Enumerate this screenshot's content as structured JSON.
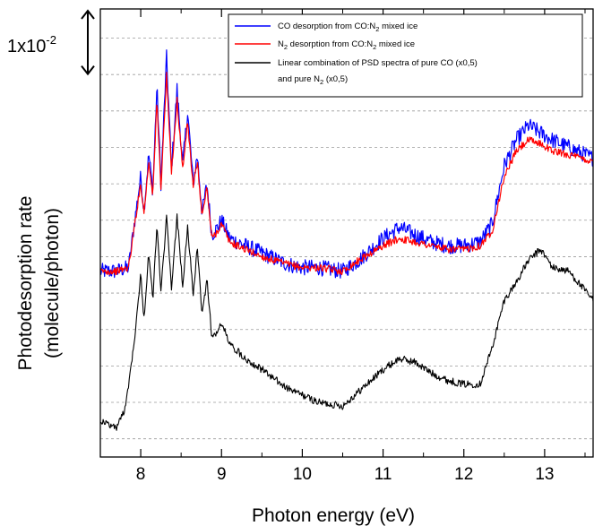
{
  "chart_data": {
    "type": "line",
    "title": "",
    "xlabel": "Photon energy (eV)",
    "ylabel_line1": "Photodesorption rate",
    "ylabel_line2": "(molecule/photon)",
    "xlim": [
      7.5,
      13.6
    ],
    "x_ticks": [
      "8",
      "9",
      "10",
      "11",
      "12",
      "13"
    ],
    "y_ticks_shown": false,
    "y_units": "offset units (scale bar = 1x10^-2)",
    "ylim": [
      -0.5,
      11.8
    ],
    "grid": {
      "horizontal_dashed": true,
      "vertical": false
    },
    "scale_bar": {
      "label_base": "1x10",
      "label_exp": "-2",
      "value": 1.0
    },
    "legend": {
      "placement": "top-right",
      "entries": [
        {
          "text_parts": [
            "CO desorption from CO:N",
            "2",
            " mixed ice"
          ],
          "color": "#0000ff"
        },
        {
          "text_parts": [
            "N",
            "2",
            " desorption from CO:N",
            "2",
            " mixed ice"
          ],
          "color": "#ff0000"
        },
        {
          "text_parts": [
            "Linear combination of PSD spectra of pure CO (x0,5)"
          ],
          "color": "#000000"
        },
        {
          "text_parts": [
            "and pure N",
            "2",
            " (x0,5)"
          ],
          "color": null
        }
      ]
    },
    "series": [
      {
        "name": "CO desorption from CO:N2 mixed ice",
        "color": "#0000ff",
        "x": [
          7.5,
          7.7,
          7.85,
          7.92,
          8.0,
          8.04,
          8.1,
          8.15,
          8.2,
          8.25,
          8.32,
          8.38,
          8.45,
          8.52,
          8.58,
          8.65,
          8.7,
          8.76,
          8.82,
          8.88,
          8.95,
          9.0,
          9.1,
          9.3,
          9.5,
          9.8,
          10.0,
          10.2,
          10.5,
          10.7,
          11.0,
          11.2,
          11.4,
          11.6,
          11.8,
          12.0,
          12.2,
          12.35,
          12.5,
          12.65,
          12.8,
          12.95,
          13.1,
          13.3,
          13.6
        ],
        "y": [
          4.6,
          4.6,
          4.7,
          5.9,
          7.2,
          6.3,
          7.8,
          6.8,
          9.7,
          7.0,
          10.5,
          7.4,
          9.6,
          7.5,
          9.0,
          7.0,
          7.8,
          6.2,
          7.0,
          5.6,
          5.8,
          6.0,
          5.5,
          5.3,
          5.1,
          4.8,
          4.7,
          4.7,
          4.6,
          4.9,
          5.5,
          5.8,
          5.6,
          5.4,
          5.3,
          5.3,
          5.4,
          5.9,
          7.5,
          8.2,
          8.6,
          8.4,
          8.2,
          8.0,
          7.7
        ]
      },
      {
        "name": "N2 desorption from CO:N2 mixed ice",
        "color": "#ff0000",
        "x": [
          7.5,
          7.7,
          7.85,
          7.92,
          8.0,
          8.04,
          8.1,
          8.15,
          8.2,
          8.25,
          8.32,
          8.38,
          8.45,
          8.52,
          8.58,
          8.65,
          8.7,
          8.76,
          8.82,
          8.88,
          8.95,
          9.0,
          9.1,
          9.3,
          9.5,
          9.8,
          10.0,
          10.2,
          10.5,
          10.7,
          11.0,
          11.2,
          11.4,
          11.6,
          11.8,
          12.0,
          12.2,
          12.35,
          12.5,
          12.65,
          12.8,
          12.95,
          13.1,
          13.3,
          13.6
        ],
        "y": [
          4.6,
          4.6,
          4.7,
          5.8,
          7.0,
          6.2,
          7.6,
          6.7,
          9.3,
          6.9,
          10.0,
          7.3,
          9.3,
          7.4,
          8.7,
          6.9,
          7.6,
          6.1,
          6.9,
          5.5,
          5.7,
          5.9,
          5.4,
          5.2,
          5.0,
          4.8,
          4.7,
          4.7,
          4.6,
          4.9,
          5.3,
          5.5,
          5.4,
          5.3,
          5.2,
          5.2,
          5.3,
          5.7,
          7.2,
          7.9,
          8.2,
          8.1,
          7.9,
          7.8,
          7.6
        ]
      },
      {
        "name": "Linear combination of PSD spectra of pure CO (x0,5) and pure N2 (x0,5)",
        "color": "#000000",
        "x": [
          7.5,
          7.7,
          7.8,
          7.85,
          7.92,
          8.0,
          8.04,
          8.1,
          8.15,
          8.2,
          8.25,
          8.32,
          8.38,
          8.45,
          8.52,
          8.58,
          8.65,
          8.7,
          8.76,
          8.82,
          8.88,
          8.95,
          9.0,
          9.1,
          9.3,
          9.5,
          9.8,
          10.0,
          10.2,
          10.5,
          10.7,
          11.0,
          11.2,
          11.4,
          11.6,
          11.8,
          12.0,
          12.2,
          12.35,
          12.5,
          12.65,
          12.8,
          12.95,
          13.1,
          13.3,
          13.6
        ],
        "y": [
          0.5,
          0.3,
          0.8,
          1.5,
          2.7,
          4.5,
          3.3,
          5.1,
          3.8,
          5.9,
          4.0,
          6.1,
          4.1,
          6.1,
          4.2,
          5.8,
          4.0,
          5.2,
          3.4,
          4.4,
          2.8,
          2.9,
          3.2,
          2.6,
          2.2,
          1.9,
          1.4,
          1.2,
          1.0,
          0.9,
          1.3,
          1.9,
          2.2,
          2.1,
          1.8,
          1.6,
          1.5,
          1.5,
          2.5,
          3.8,
          4.3,
          4.9,
          5.2,
          4.7,
          4.6,
          3.8
        ]
      }
    ]
  }
}
